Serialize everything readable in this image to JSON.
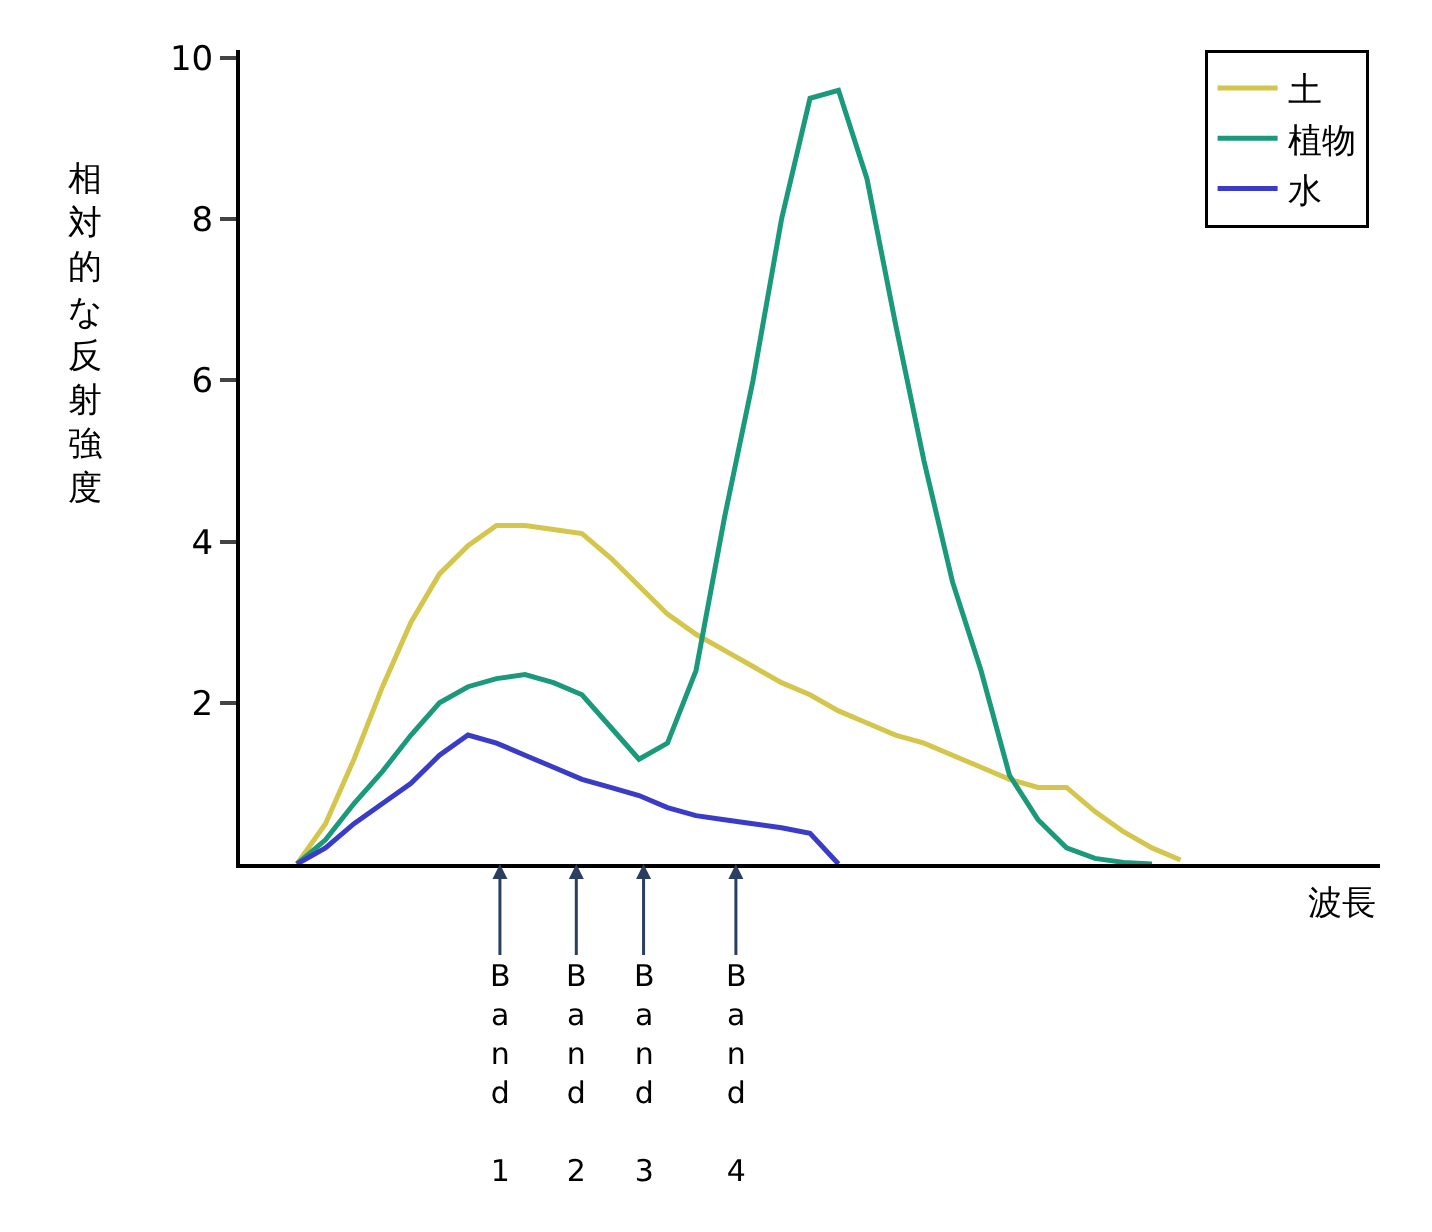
{
  "chart_data": {
    "type": "line",
    "ylabel": "相対的な反射強度",
    "xlabel": "波長",
    "categories": [
      null,
      null,
      null,
      null,
      null,
      null,
      null,
      null,
      null,
      null,
      null,
      null,
      null,
      null,
      null,
      null,
      null,
      null,
      null,
      null,
      null,
      null,
      null,
      null,
      null,
      null,
      null,
      null,
      null,
      null,
      null,
      null,
      null,
      null,
      null,
      null,
      null,
      null,
      null,
      null,
      null
    ],
    "ylim": [
      0,
      10.1
    ],
    "yticks": [
      2,
      4,
      6,
      8,
      10
    ],
    "tick_labels": "y",
    "legend": "top right",
    "marker": "none",
    "line_style": "solid",
    "series": [
      {
        "name": "土",
        "color": "#d4c64c",
        "values": [
          null,
          null,
          0,
          0.5,
          1.3,
          2.2,
          3.0,
          3.6,
          3.95,
          4.2,
          4.2,
          4.15,
          4.1,
          3.8,
          3.45,
          3.1,
          2.85,
          2.65,
          2.45,
          2.25,
          2.1,
          1.9,
          1.75,
          1.6,
          1.5,
          1.35,
          1.2,
          1.05,
          0.95,
          0.95,
          0.65,
          0.4,
          0.2,
          0.05,
          null,
          null,
          null,
          null,
          null,
          null,
          null
        ]
      },
      {
        "name": "植物",
        "color": "#1a9a7a",
        "values": [
          null,
          null,
          0,
          0.3,
          0.75,
          1.15,
          1.6,
          2.0,
          2.2,
          2.3,
          2.35,
          2.25,
          2.1,
          1.7,
          1.3,
          1.5,
          2.4,
          4.3,
          6.0,
          8.0,
          9.5,
          9.6,
          8.5,
          6.7,
          5.0,
          3.5,
          2.4,
          1.1,
          0.55,
          0.2,
          0.07,
          0.02,
          0,
          null,
          null,
          null,
          null,
          null,
          null,
          null,
          null
        ]
      },
      {
        "name": "水",
        "color": "#3a3cc8",
        "values": [
          null,
          null,
          0,
          0.2,
          0.5,
          0.75,
          1.0,
          1.35,
          1.6,
          1.5,
          1.35,
          1.2,
          1.05,
          0.95,
          0.85,
          0.7,
          0.6,
          0.55,
          0.5,
          0.45,
          0.38,
          0,
          null,
          null,
          null,
          null,
          null,
          null,
          null,
          null,
          null,
          null,
          null,
          null,
          null,
          null,
          null,
          null,
          null,
          null,
          null
        ]
      }
    ],
    "annotations": [
      "Band 1",
      "Band 2",
      "Band 3",
      "Band 4"
    ]
  }
}
